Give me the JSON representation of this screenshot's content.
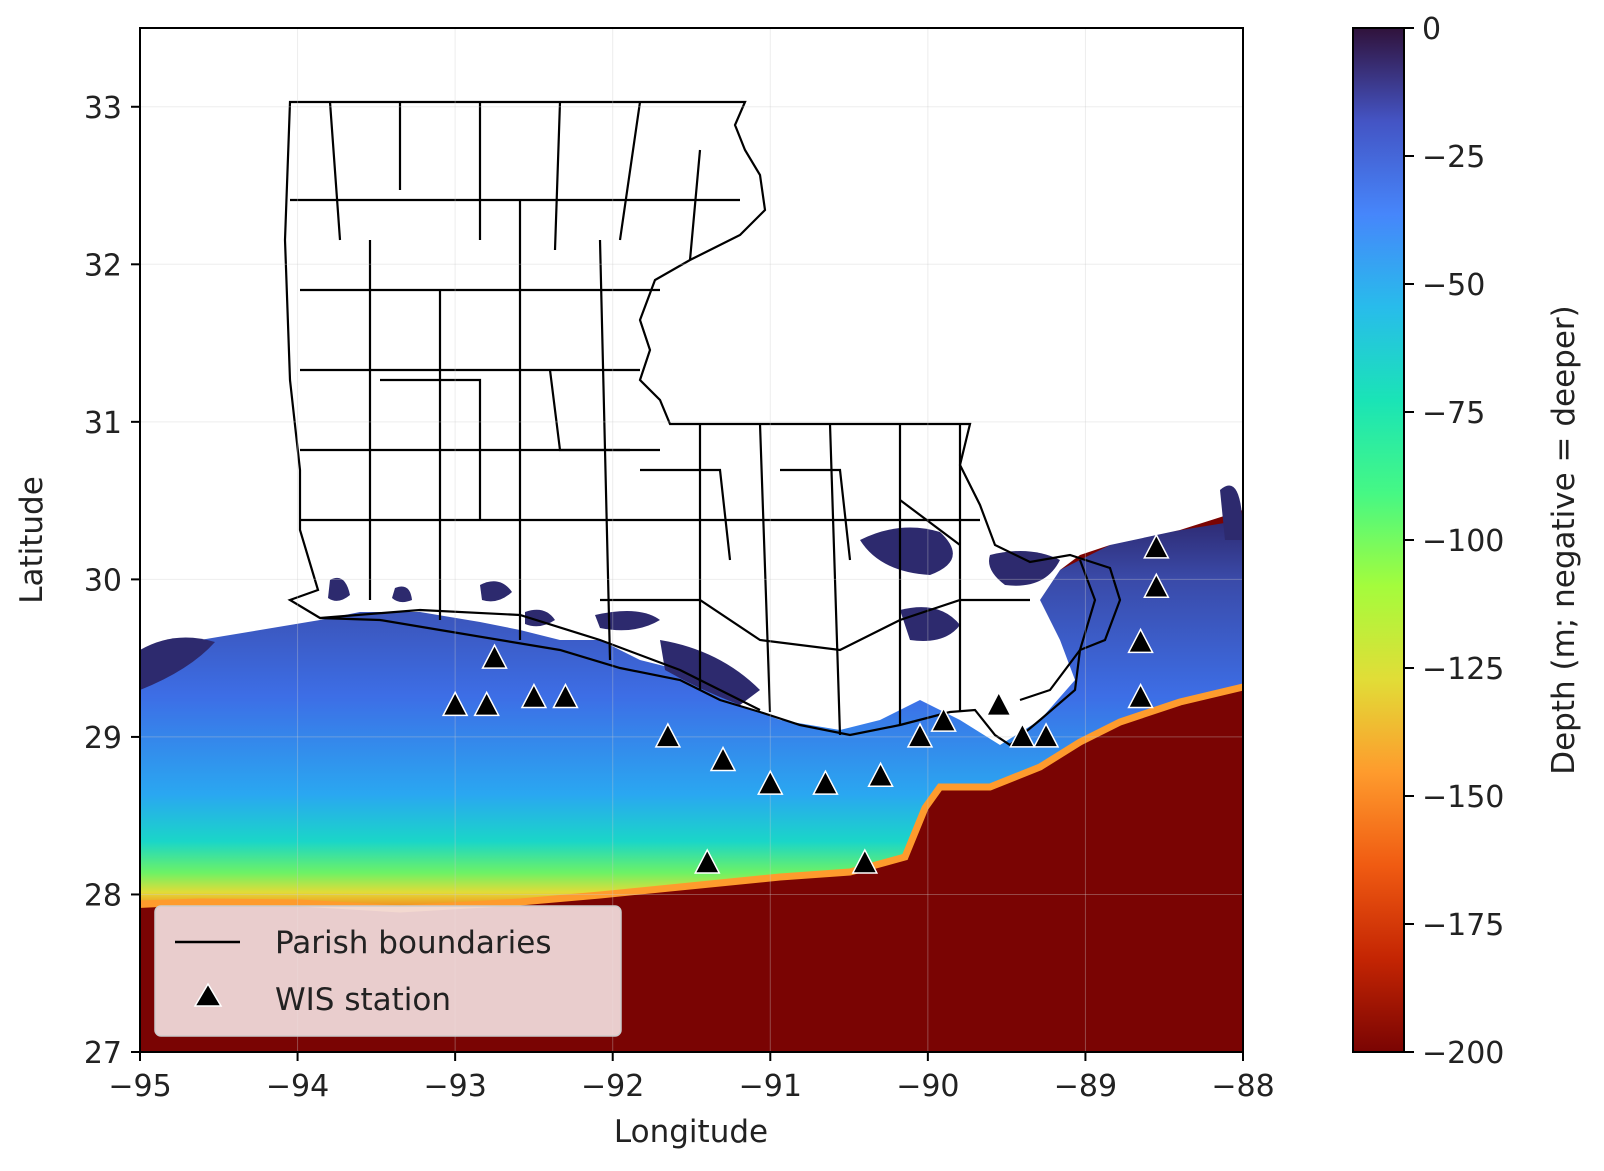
{
  "map": {
    "xlabel": "Longitude",
    "ylabel": "Latitude",
    "xlim": [
      -95,
      -88
    ],
    "ylim": [
      27,
      33.5
    ],
    "x_ticks": [
      {
        "value": -95,
        "label": "−95"
      },
      {
        "value": -94,
        "label": "−94"
      },
      {
        "value": -93,
        "label": "−93"
      },
      {
        "value": -92,
        "label": "−92"
      },
      {
        "value": -91,
        "label": "−91"
      },
      {
        "value": -90,
        "label": "−90"
      },
      {
        "value": -89,
        "label": "−89"
      },
      {
        "value": -88,
        "label": "−88"
      }
    ],
    "y_ticks": [
      {
        "value": 27,
        "label": "27"
      },
      {
        "value": 28,
        "label": "28"
      },
      {
        "value": 29,
        "label": "29"
      },
      {
        "value": 30,
        "label": "30"
      },
      {
        "value": 31,
        "label": "31"
      },
      {
        "value": 32,
        "label": "32"
      },
      {
        "value": 33,
        "label": "33"
      }
    ],
    "grid": true,
    "legend": {
      "position": "lower-left",
      "items": [
        {
          "label": "Parish boundaries",
          "symbol": "line"
        },
        {
          "label": "WIS station",
          "symbol": "triangle"
        }
      ]
    },
    "colorbar": {
      "label": "Depth (m; negative = deeper)",
      "range": [
        -200,
        0
      ],
      "ticks": [
        {
          "value": 0,
          "label": "0"
        },
        {
          "value": -25,
          "label": "−25"
        },
        {
          "value": -50,
          "label": "−50"
        },
        {
          "value": -75,
          "label": "−75"
        },
        {
          "value": -100,
          "label": "−100"
        },
        {
          "value": -125,
          "label": "−125"
        },
        {
          "value": -150,
          "label": "−150"
        },
        {
          "value": -175,
          "label": "−175"
        },
        {
          "value": -200,
          "label": "−200"
        }
      ],
      "colormap": [
        "#7a0403",
        "#c42503",
        "#f05b12",
        "#fe9b2d",
        "#e1dd37",
        "#a4fc3c",
        "#46f884",
        "#1ae4b6",
        "#28bceb",
        "#4686fb",
        "#4454c4",
        "#30123b"
      ]
    },
    "colors": {
      "land": "#ffffff",
      "shallow": "#2d2a6e",
      "deep": "#7a0403",
      "boundary": "#000000",
      "station": "#000000"
    },
    "stations": [
      [
        -93.0,
        29.2
      ],
      [
        -92.8,
        29.2
      ],
      [
        -92.75,
        29.5
      ],
      [
        -92.5,
        29.25
      ],
      [
        -92.3,
        29.25
      ],
      [
        -91.65,
        29.0
      ],
      [
        -91.3,
        28.85
      ],
      [
        -91.0,
        28.7
      ],
      [
        -90.65,
        28.7
      ],
      [
        -90.3,
        28.75
      ],
      [
        -90.05,
        29.0
      ],
      [
        -89.9,
        29.1
      ],
      [
        -89.55,
        29.2
      ],
      [
        -89.4,
        29.0
      ],
      [
        -89.25,
        29.0
      ],
      [
        -88.65,
        29.25
      ],
      [
        -88.65,
        29.6
      ],
      [
        -88.55,
        29.95
      ],
      [
        -88.55,
        30.2
      ],
      [
        -91.4,
        28.2
      ],
      [
        -90.4,
        28.2
      ]
    ]
  }
}
